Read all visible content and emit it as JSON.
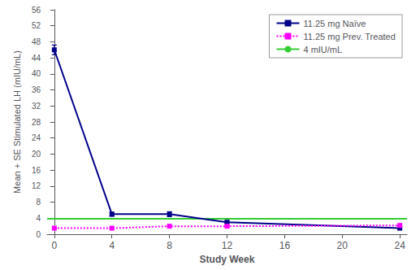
{
  "chart_data": {
    "type": "line",
    "xlabel": "Study Week",
    "ylabel": "Mean + SE Stimulated LH (mIU/mL)",
    "xlim": [
      -0.5,
      24.5
    ],
    "ylim": [
      0,
      56
    ],
    "xticks": [
      0,
      4,
      8,
      12,
      16,
      20,
      24
    ],
    "yticks": [
      0,
      4,
      8,
      12,
      16,
      20,
      24,
      28,
      32,
      36,
      40,
      44,
      48,
      52,
      56
    ],
    "series": [
      {
        "name": "11.25 mg Naïve",
        "color": "#00008B",
        "marker": "square",
        "line_style": "solid",
        "x": [
          0,
          4,
          8,
          12,
          24
        ],
        "values": [
          46.0,
          5.0,
          5.0,
          3.0,
          1.5
        ],
        "errors": [
          1.2,
          0.5,
          0.6,
          0.3,
          0.2
        ]
      },
      {
        "name": "11.25 mg Prev. Treated",
        "color": "#FF00FF",
        "marker": "square",
        "line_style": "dotted",
        "x": [
          0,
          4,
          8,
          12,
          24
        ],
        "values": [
          1.5,
          1.5,
          2.0,
          2.0,
          2.2
        ],
        "errors": [
          0.15,
          0.15,
          0.2,
          0.2,
          0.2
        ]
      }
    ],
    "reference_line": {
      "name": "4 mIU/mL",
      "value": 4.0,
      "color": "#33CC33"
    },
    "legend": "upper right",
    "grid": false
  }
}
